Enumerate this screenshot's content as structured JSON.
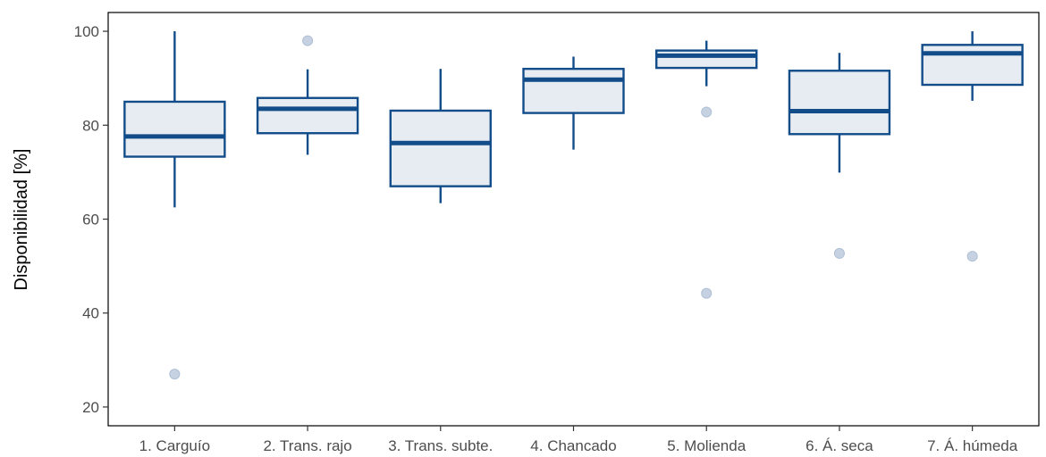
{
  "chart_data": {
    "type": "boxplot",
    "title": "",
    "xlabel": "",
    "ylabel": "Disponibilidad [%]",
    "ylim": [
      16,
      104
    ],
    "yticks": [
      20,
      40,
      60,
      80,
      100
    ],
    "grid": false,
    "colors": {
      "box_fill": "#e7ebf2",
      "box_stroke": "#124d8a",
      "median": "#124d8a",
      "outlier": "#c6d2e2",
      "outlier_stroke": "#aebfd5",
      "axis": "#000000",
      "tick_text": "#4d4d4d"
    },
    "categories": [
      "1. Carguío",
      "2. Trans. rajo",
      "3. Trans. subte.",
      "4. Chancado",
      "5. Molienda",
      "6. Á. seca",
      "7. Á. húmeda"
    ],
    "boxes": [
      {
        "whisker_low": 62.5,
        "q1": 73.3,
        "median": 77.6,
        "q3": 85.0,
        "whisker_high": 100.0,
        "outliers": [
          27.0
        ]
      },
      {
        "whisker_low": 73.7,
        "q1": 78.3,
        "median": 83.5,
        "q3": 85.8,
        "whisker_high": 91.9,
        "outliers": [
          98.0
        ]
      },
      {
        "whisker_low": 63.4,
        "q1": 67.0,
        "median": 76.2,
        "q3": 83.1,
        "whisker_high": 92.0,
        "outliers": []
      },
      {
        "whisker_low": 74.8,
        "q1": 82.6,
        "median": 89.7,
        "q3": 92.0,
        "whisker_high": 94.6,
        "outliers": []
      },
      {
        "whisker_low": 88.3,
        "q1": 92.2,
        "median": 94.8,
        "q3": 95.9,
        "whisker_high": 98.0,
        "outliers": [
          82.8,
          44.2
        ]
      },
      {
        "whisker_low": 69.9,
        "q1": 78.1,
        "median": 83.0,
        "q3": 91.6,
        "whisker_high": 95.4,
        "outliers": [
          52.7
        ]
      },
      {
        "whisker_low": 85.2,
        "q1": 88.6,
        "median": 95.3,
        "q3": 97.1,
        "whisker_high": 100.0,
        "outliers": [
          52.1
        ]
      }
    ]
  }
}
